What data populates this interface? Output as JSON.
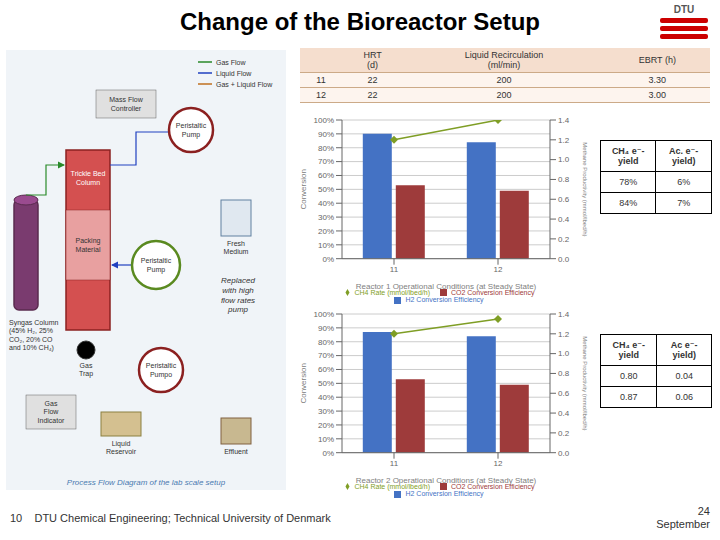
{
  "title": "Change of the Bioreactor Setup",
  "chart_data": [
    {
      "type": "bar",
      "xlabel": "Reactor 1 Operational Conditions (at Steady State)",
      "ylabel": "Conversion",
      "y2label": "Methane Productivity (mmol/lbed/h)",
      "categories": [
        "11",
        "12"
      ],
      "series": [
        {
          "name": "H2 Conversion Efficiency",
          "type": "bar",
          "color": "#4472c4",
          "values": [
            0.9,
            0.84
          ]
        },
        {
          "name": "CO2 Conversion Efficiency",
          "type": "bar",
          "color": "#9e3b3b",
          "values": [
            0.53,
            0.49
          ]
        },
        {
          "name": "CH4 Rate (mmol/lbed/h)",
          "type": "line",
          "axis": "y2",
          "marker": "diamond",
          "color": "#7f9e25",
          "values": [
            1.2,
            1.4
          ]
        }
      ],
      "ylim": [
        0,
        1.0
      ],
      "yticks": [
        {
          "value": 0,
          "label": "0%"
        },
        {
          "value": 0.1,
          "label": "10%"
        },
        {
          "value": 0.2,
          "label": "20%"
        },
        {
          "value": 0.3,
          "label": "30%"
        },
        {
          "value": 0.4,
          "label": "40%"
        },
        {
          "value": 0.5,
          "label": "50%"
        },
        {
          "value": 0.6,
          "label": "60%"
        },
        {
          "value": 0.7,
          "label": "70%"
        },
        {
          "value": 0.8,
          "label": "80%"
        },
        {
          "value": 0.9,
          "label": "90%"
        },
        {
          "value": 1.0,
          "label": "100%"
        }
      ],
      "y2lim": [
        0,
        1.4
      ],
      "y2ticks": [
        {
          "value": 0,
          "label": "0.0"
        },
        0.2,
        0.4,
        0.6,
        0.8,
        {
          "value": 1.0,
          "label": "1.0"
        },
        1.2,
        1.4
      ],
      "grid": true,
      "legend": "bottom"
    },
    {
      "type": "bar",
      "xlabel": "Reactor 2 Operational Conditions (at Steady State)",
      "ylabel": "Conversion",
      "y2label": "Methane Productivity (mmol/lbed/h)",
      "categories": [
        "11",
        "12"
      ],
      "series": [
        {
          "name": "H2 Conversion Efficiency",
          "type": "bar",
          "color": "#4472c4",
          "values": [
            0.87,
            0.84
          ]
        },
        {
          "name": "CO2 Conversion Efficiency",
          "type": "bar",
          "color": "#9e3b3b",
          "values": [
            0.53,
            0.49
          ]
        },
        {
          "name": "CH4 Rate (mmol/lbed/h)",
          "type": "line",
          "axis": "y2",
          "marker": "diamond",
          "color": "#7f9e25",
          "values": [
            1.2,
            1.35
          ]
        }
      ],
      "ylim": [
        0,
        1.0
      ],
      "yticks": [
        {
          "value": 0,
          "label": "0%"
        },
        {
          "value": 0.1,
          "label": "10%"
        },
        {
          "value": 0.2,
          "label": "20%"
        },
        {
          "value": 0.3,
          "label": "30%"
        },
        {
          "value": 0.4,
          "label": "40%"
        },
        {
          "value": 0.5,
          "label": "50%"
        },
        {
          "value": 0.6,
          "label": "60%"
        },
        {
          "value": 0.7,
          "label": "70%"
        },
        {
          "value": 0.8,
          "label": "80%"
        },
        {
          "value": 0.9,
          "label": "90%"
        },
        {
          "value": 1.0,
          "label": "100%"
        }
      ],
      "y2lim": [
        0,
        1.4
      ],
      "y2ticks": [
        {
          "value": 0,
          "label": "0.0"
        },
        0.2,
        0.4,
        0.6,
        0.8,
        {
          "value": 1.0,
          "label": "1.0"
        },
        1.2,
        1.4
      ],
      "grid": true,
      "legend": "bottom"
    }
  ],
  "tables": [
    {
      "header": [
        null,
        "HRT\n(d)",
        "Liquid Recirculation\n(ml/min)",
        "EBRT (h)"
      ],
      "rows": [
        [
          "11",
          "22",
          "200",
          "3.30"
        ],
        [
          "12",
          "22",
          "200",
          "3.00"
        ]
      ]
    },
    {
      "header": [
        "CH₄ e⁻-yield",
        "Ac. e⁻-yield)"
      ],
      "rows": [
        [
          "78%",
          "6%"
        ],
        [
          "84%",
          "7%"
        ]
      ]
    },
    {
      "header": [
        "CH₄ e⁻-yield",
        "Ac e⁻-yield)"
      ],
      "rows": [
        [
          "0.80",
          "0.04"
        ],
        [
          "0.87",
          "0.06"
        ]
      ]
    }
  ],
  "diagram_legend": [
    {
      "name": "Gas Flow",
      "color": "#2a8a2a"
    },
    {
      "name": "Liquid Flow",
      "color": "#2040c0"
    },
    {
      "name": "Gas + Liquid Flow",
      "color": "#c07020"
    }
  ],
  "annotations": [
    "DTU",
    "Syngas Column\n(45% H₂, 25%\nCO₂, 20% CO\nand 10% CH₄)",
    "Packing\nMaterial",
    "Trickle Bed\nColumn",
    "Peristaltic\nPump",
    "Peristaltic\nPump",
    "Peristaltic\nPumpo",
    "Liquid\nReservoir",
    "Fresh\nMedium",
    "Effluent",
    "Gas\nTrap",
    "Gas\nFlow\nIndicator",
    "Replaced\nwith high\nflow rates\npump",
    "Mass Flow\nController",
    "Process Flow Diagram of the lab scale setup",
    "10    DTU Chemical Engineering; Technical University of Denmark",
    "24\nSeptember"
  ]
}
